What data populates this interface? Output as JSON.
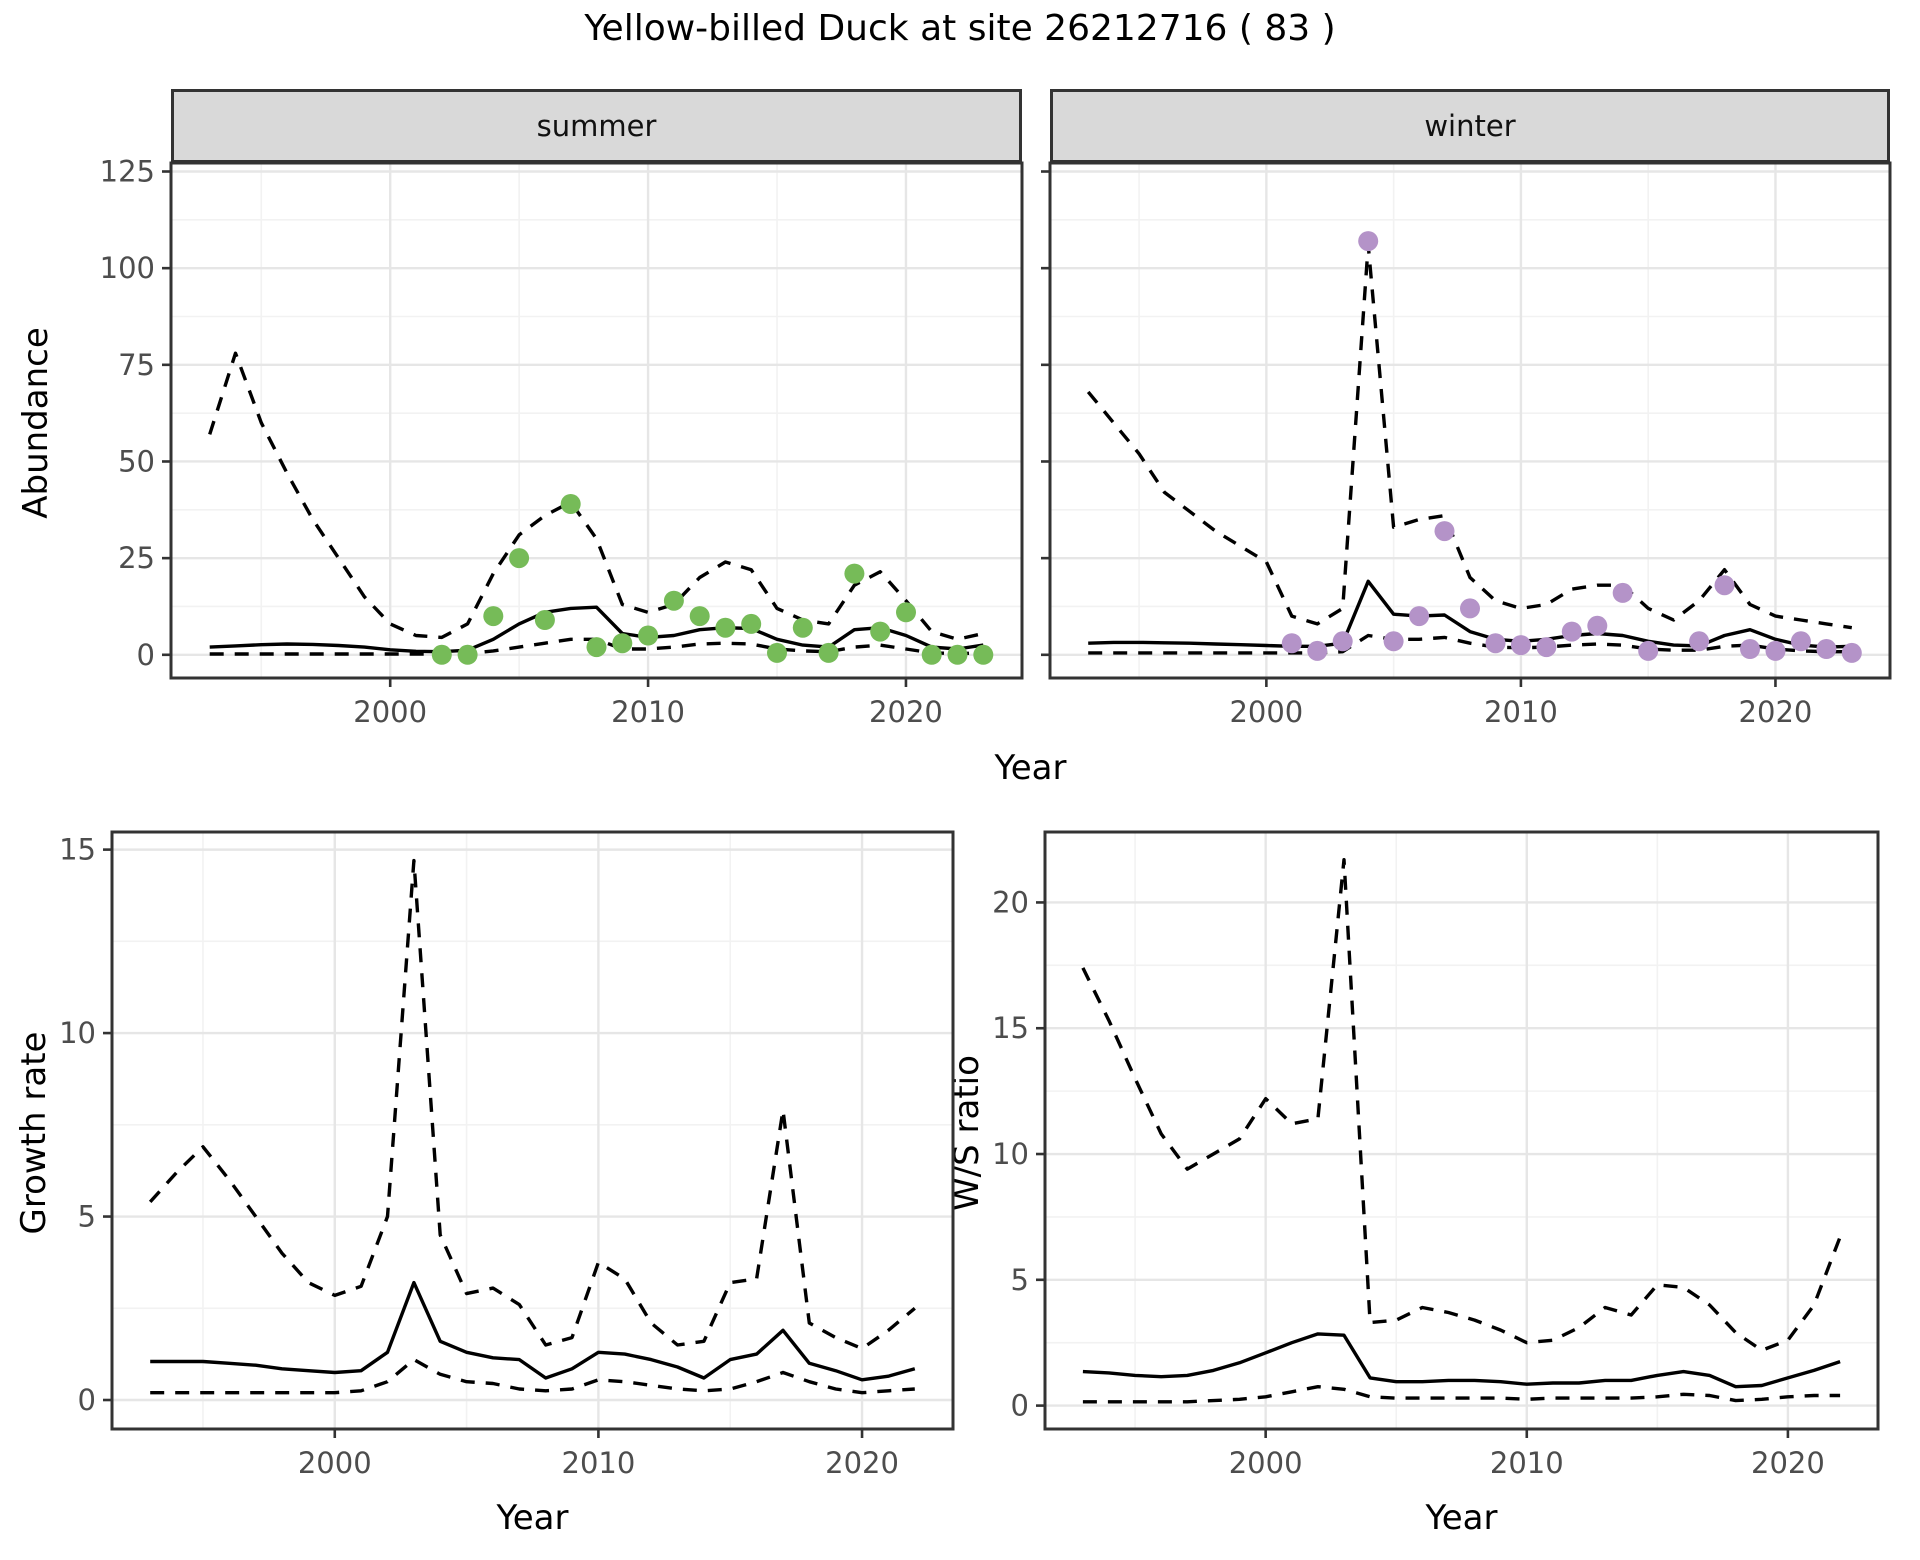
{
  "title": "Yellow-billed Duck at site 26212716 ( 83 )",
  "colors": {
    "summer_points": "#76BB58",
    "winter_points": "#B493C8",
    "strip_bg": "#D9D9D9",
    "panel_border": "#333333",
    "grid_major": "#E6E6E6",
    "grid_minor": "#F2F2F2",
    "tick_label": "#4D4D4D",
    "line": "#000000"
  },
  "chart_data": [
    {
      "id": "summer",
      "facet": "summer",
      "type": "line",
      "xlabel": "Year",
      "ylabel": "Abundance",
      "legend": "none",
      "grid": true,
      "xlim": [
        1991.5,
        2024.5
      ],
      "ylim": [
        -6,
        127.2
      ],
      "xticks": [
        2000,
        2010,
        2020
      ],
      "xticks_minor": [
        1995,
        2005,
        2015
      ],
      "yticks": [
        0,
        25,
        50,
        75,
        100,
        125
      ],
      "yticks_minor": [
        12.5,
        37.5,
        62.5,
        87.5,
        112.5
      ],
      "show_y_labels": true,
      "x": [
        1993,
        1994,
        1995,
        1996,
        1997,
        1998,
        1999,
        2000,
        2001,
        2002,
        2003,
        2004,
        2005,
        2006,
        2007,
        2008,
        2009,
        2010,
        2011,
        2012,
        2013,
        2014,
        2015,
        2016,
        2017,
        2018,
        2019,
        2020,
        2021,
        2022,
        2023
      ],
      "series": [
        {
          "name": "upper_ci",
          "style": "dashed",
          "values": [
            57,
            78,
            60,
            47,
            35,
            25,
            15,
            8,
            5,
            4.5,
            8,
            21,
            31,
            36,
            39.5,
            30,
            13,
            11,
            13,
            20,
            24,
            22,
            12,
            9,
            8,
            18,
            21.5,
            14,
            6,
            4,
            5.5
          ]
        },
        {
          "name": "lower_ci",
          "style": "dashed",
          "values": [
            0.2,
            0.2,
            0.2,
            0.2,
            0.2,
            0.2,
            0.2,
            0.2,
            0.2,
            0.2,
            0.3,
            1,
            2,
            3,
            4,
            4,
            1.5,
            1.5,
            2,
            2.8,
            3,
            2.8,
            1.5,
            1,
            0.8,
            2,
            2.5,
            1.5,
            0.5,
            0.3,
            0.5
          ]
        },
        {
          "name": "model_fit",
          "style": "solid",
          "values": [
            2,
            2.3,
            2.6,
            2.8,
            2.7,
            2.4,
            2,
            1.3,
            0.9,
            0.8,
            1.2,
            4,
            8,
            11,
            12,
            12.3,
            5.5,
            4.5,
            5,
            6.5,
            7,
            6.8,
            4,
            2.5,
            2,
            6.5,
            7,
            5,
            2,
            1.5,
            2.5
          ]
        }
      ],
      "points": {
        "name": "observed_counts",
        "color": "#76BB58",
        "x": [
          2002,
          2003,
          2004,
          2005,
          2006,
          2007,
          2008,
          2009,
          2010,
          2011,
          2012,
          2013,
          2014,
          2015,
          2016,
          2017,
          2018,
          2019,
          2020,
          2021,
          2022,
          2023
        ],
        "y": [
          0,
          0,
          10,
          25,
          9,
          39,
          2,
          3,
          5,
          14,
          10,
          7,
          8,
          0.5,
          7,
          0.5,
          21,
          6,
          11,
          0,
          0,
          0
        ]
      }
    },
    {
      "id": "winter",
      "facet": "winter",
      "type": "line",
      "xlabel": "Year",
      "ylabel": "Abundance",
      "legend": "none",
      "grid": true,
      "xlim": [
        1991.5,
        2024.5
      ],
      "ylim": [
        -6,
        127.2
      ],
      "xticks": [
        2000,
        2010,
        2020
      ],
      "xticks_minor": [
        1995,
        2005,
        2015
      ],
      "yticks": [
        0,
        25,
        50,
        75,
        100,
        125
      ],
      "yticks_minor": [
        12.5,
        37.5,
        62.5,
        87.5,
        112.5
      ],
      "show_y_labels": false,
      "x": [
        1993,
        1994,
        1995,
        1996,
        1997,
        1998,
        1999,
        2000,
        2001,
        2002,
        2003,
        2004,
        2005,
        2006,
        2007,
        2008,
        2009,
        2010,
        2011,
        2012,
        2013,
        2014,
        2015,
        2016,
        2017,
        2018,
        2019,
        2020,
        2021,
        2022,
        2023
      ],
      "series": [
        {
          "name": "upper_ci",
          "style": "dashed",
          "values": [
            68,
            60,
            52,
            42,
            37,
            32,
            28,
            24,
            10,
            8,
            12,
            106,
            33,
            35,
            36,
            20,
            14,
            12,
            13,
            17,
            18,
            18,
            12,
            9,
            14,
            22,
            13,
            10,
            9,
            8,
            7
          ]
        },
        {
          "name": "lower_ci",
          "style": "dashed",
          "values": [
            0.5,
            0.5,
            0.5,
            0.5,
            0.5,
            0.5,
            0.5,
            0.5,
            0.5,
            0.5,
            0.8,
            5,
            4,
            4,
            4.5,
            3,
            2,
            1.8,
            2,
            2.5,
            2.8,
            2.5,
            1.5,
            1.2,
            1.2,
            2.2,
            2.5,
            1.5,
            1,
            0.8,
            0.8
          ]
        },
        {
          "name": "model_fit",
          "style": "solid",
          "values": [
            3,
            3.2,
            3.2,
            3.1,
            3,
            2.8,
            2.6,
            2.4,
            2.2,
            2.2,
            3,
            19,
            10.5,
            10,
            10.3,
            6,
            4,
            3.5,
            4,
            5,
            5.5,
            5,
            3.5,
            2.5,
            2.3,
            5,
            6.5,
            4,
            2.5,
            2,
            2.2
          ]
        }
      ],
      "points": {
        "name": "observed_counts",
        "color": "#B493C8",
        "x": [
          2001,
          2002,
          2003,
          2004,
          2005,
          2006,
          2007,
          2008,
          2009,
          2010,
          2011,
          2012,
          2013,
          2014,
          2015,
          2017,
          2018,
          2019,
          2020,
          2021,
          2022,
          2023
        ],
        "y": [
          3,
          1,
          3.5,
          107,
          3.5,
          10,
          32,
          12,
          3,
          2.5,
          2,
          6,
          7.5,
          16,
          1,
          3.5,
          18,
          1.5,
          1,
          3.5,
          1.5,
          0.5
        ]
      }
    },
    {
      "id": "growth",
      "facet": null,
      "type": "line",
      "xlabel": "Year",
      "ylabel": "Growth rate",
      "legend": "none",
      "grid": true,
      "xlim": [
        1991.55,
        2023.45
      ],
      "ylim": [
        -0.79,
        15.48
      ],
      "xticks": [
        2000,
        2010,
        2020
      ],
      "xticks_minor": [
        1995,
        2005,
        2015
      ],
      "yticks": [
        0,
        5,
        10,
        15
      ],
      "yticks_minor": [
        2.5,
        7.5,
        12.5
      ],
      "show_y_labels": true,
      "x": [
        1993,
        1994,
        1995,
        1996,
        1997,
        1998,
        1999,
        2000,
        2001,
        2002,
        2003,
        2004,
        2005,
        2006,
        2007,
        2008,
        2009,
        2010,
        2011,
        2012,
        2013,
        2014,
        2015,
        2016,
        2017,
        2018,
        2019,
        2020,
        2021,
        2022
      ],
      "series": [
        {
          "name": "upper_ci",
          "style": "dashed",
          "values": [
            5.4,
            6.2,
            6.9,
            6,
            5,
            4,
            3.2,
            2.85,
            3.1,
            5,
            14.7,
            4.5,
            2.9,
            3.05,
            2.6,
            1.5,
            1.7,
            3.75,
            3.3,
            2.1,
            1.5,
            1.6,
            3.2,
            3.3,
            7.9,
            2.1,
            1.7,
            1.4,
            1.9,
            2.5
          ]
        },
        {
          "name": "lower_ci",
          "style": "dashed",
          "values": [
            0.2,
            0.2,
            0.2,
            0.2,
            0.2,
            0.2,
            0.2,
            0.2,
            0.25,
            0.5,
            1.1,
            0.7,
            0.5,
            0.45,
            0.3,
            0.25,
            0.3,
            0.55,
            0.5,
            0.4,
            0.3,
            0.25,
            0.3,
            0.5,
            0.75,
            0.5,
            0.3,
            0.2,
            0.25,
            0.3
          ]
        },
        {
          "name": "model_fit",
          "style": "solid",
          "values": [
            1.05,
            1.05,
            1.05,
            1,
            0.95,
            0.85,
            0.8,
            0.75,
            0.8,
            1.3,
            3.2,
            1.6,
            1.3,
            1.15,
            1.1,
            0.6,
            0.85,
            1.3,
            1.25,
            1.1,
            0.9,
            0.6,
            1.1,
            1.25,
            1.9,
            1,
            0.8,
            0.55,
            0.65,
            0.85
          ]
        }
      ],
      "points": null
    },
    {
      "id": "ws",
      "facet": null,
      "type": "line",
      "xlabel": "Year",
      "ylabel": "W/S ratio",
      "legend": "none",
      "grid": true,
      "xlim": [
        1991.55,
        2023.45
      ],
      "ylim": [
        -0.93,
        22.8
      ],
      "xticks": [
        2000,
        2010,
        2020
      ],
      "xticks_minor": [
        1995,
        2005,
        2015
      ],
      "yticks": [
        0,
        5,
        10,
        15,
        20
      ],
      "yticks_minor": [
        2.5,
        7.5,
        12.5,
        17.5
      ],
      "show_y_labels": true,
      "x": [
        1993,
        1994,
        1995,
        1996,
        1997,
        1998,
        1999,
        2000,
        2001,
        2002,
        2003,
        2004,
        2005,
        2006,
        2007,
        2008,
        2009,
        2010,
        2011,
        2012,
        2013,
        2014,
        2015,
        2016,
        2017,
        2018,
        2019,
        2020,
        2021,
        2022
      ],
      "series": [
        {
          "name": "upper_ci",
          "style": "dashed",
          "values": [
            17.4,
            15.3,
            13,
            10.8,
            9.4,
            10,
            10.6,
            12.2,
            11.2,
            11.4,
            21.7,
            3.3,
            3.4,
            3.9,
            3.7,
            3.4,
            3,
            2.5,
            2.6,
            3.1,
            3.9,
            3.6,
            4.8,
            4.7,
            4,
            2.9,
            2.2,
            2.6,
            4,
            6.7
          ]
        },
        {
          "name": "lower_ci",
          "style": "dashed",
          "values": [
            0.15,
            0.15,
            0.15,
            0.15,
            0.15,
            0.2,
            0.25,
            0.35,
            0.55,
            0.75,
            0.65,
            0.35,
            0.3,
            0.3,
            0.3,
            0.3,
            0.3,
            0.25,
            0.3,
            0.3,
            0.3,
            0.3,
            0.35,
            0.45,
            0.4,
            0.2,
            0.25,
            0.35,
            0.4,
            0.4
          ]
        },
        {
          "name": "model_fit",
          "style": "solid",
          "values": [
            1.35,
            1.3,
            1.2,
            1.15,
            1.2,
            1.4,
            1.7,
            2.1,
            2.5,
            2.85,
            2.8,
            1.1,
            0.95,
            0.95,
            1,
            1,
            0.95,
            0.85,
            0.9,
            0.9,
            1,
            1,
            1.2,
            1.35,
            1.2,
            0.75,
            0.8,
            1.1,
            1.4,
            1.75
          ]
        }
      ],
      "points": null
    }
  ]
}
